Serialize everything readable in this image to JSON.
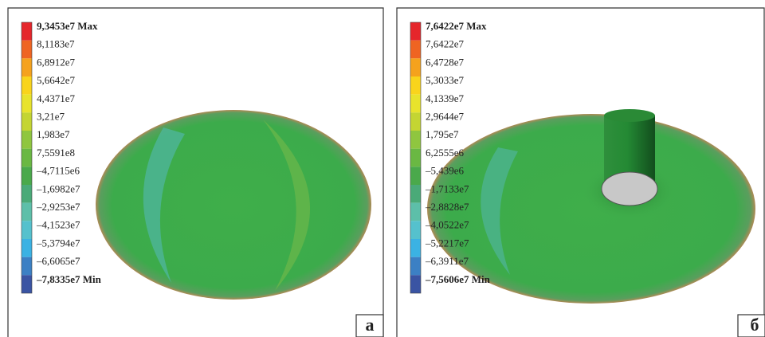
{
  "panels": [
    {
      "legend": [
        "9,3453e7 Max",
        "8,1183e7",
        "6,8912e7",
        "5,6642e7",
        "4,4371e7",
        "3,21e7",
        "1,983e7",
        "7,5591e8",
        "–4,7115e6",
        "–1,6982e7",
        "–2,9253e7",
        "–4,1523e7",
        "–5,3794e7",
        "–6,6065e7",
        "–7,8335e7 Min"
      ],
      "label": "а"
    },
    {
      "legend": [
        "7,6422e7 Max",
        "7,6422e7",
        "6,4728e7",
        "5,3033e7",
        "4,1339e7",
        "2,9644e7",
        "1,795e7",
        "6,2555e6",
        "–5,439e6",
        "–1,7133e7",
        "–2,8828e7",
        "–4,0522e7",
        "–5,2217e7",
        "–6,3911e7",
        "–7,5606e7 Min"
      ],
      "label": "б"
    }
  ]
}
